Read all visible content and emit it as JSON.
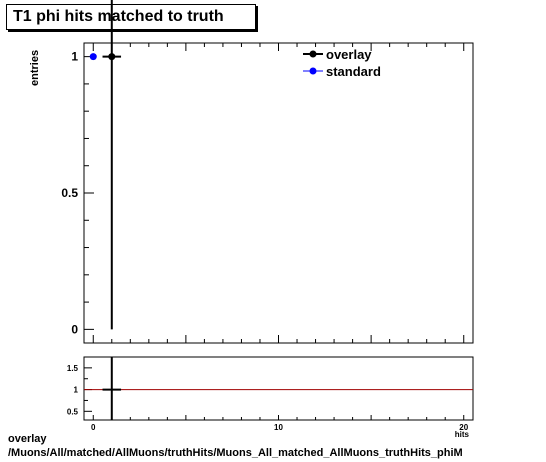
{
  "chart_data": {
    "type": "scatter",
    "title": "T1 phi hits matched to truth",
    "ylabel": "entries",
    "xlabel_visible_fragment": "hits",
    "legend_position": "top-right",
    "main_panel": {
      "xlim": [
        -0.5,
        20.5
      ],
      "ylim": [
        -0.05,
        1.05
      ],
      "y_ticks": [
        "0",
        "0.5",
        "1"
      ],
      "series": [
        {
          "name": "overlay",
          "color": "#000000",
          "points": [
            {
              "x": 1,
              "y": 1,
              "yerr_low": 1,
              "yerr_high": 1,
              "xerr": 0.5
            }
          ]
        },
        {
          "name": "standard",
          "color": "#0000ff",
          "points": [
            {
              "x": 0,
              "y": 1,
              "yerr_low": 0,
              "yerr_high": 0,
              "xerr": 0
            }
          ]
        }
      ]
    },
    "ratio_panel": {
      "ylim": [
        0.3,
        1.75
      ],
      "y_ticks": [
        "0.5",
        "1",
        "1.5"
      ],
      "x_ticks": [
        "0",
        "10",
        "20"
      ],
      "reference_line": 1,
      "reference_color": "#a00000",
      "points": [
        {
          "x": 1,
          "y": 1,
          "xerr": 0.5
        }
      ]
    }
  },
  "footer": {
    "line1": "overlay",
    "line2": "/Muons/All/matched/AllMuons/truthHits/Muons_All_matched_AllMuons_truthHits_phiM"
  }
}
